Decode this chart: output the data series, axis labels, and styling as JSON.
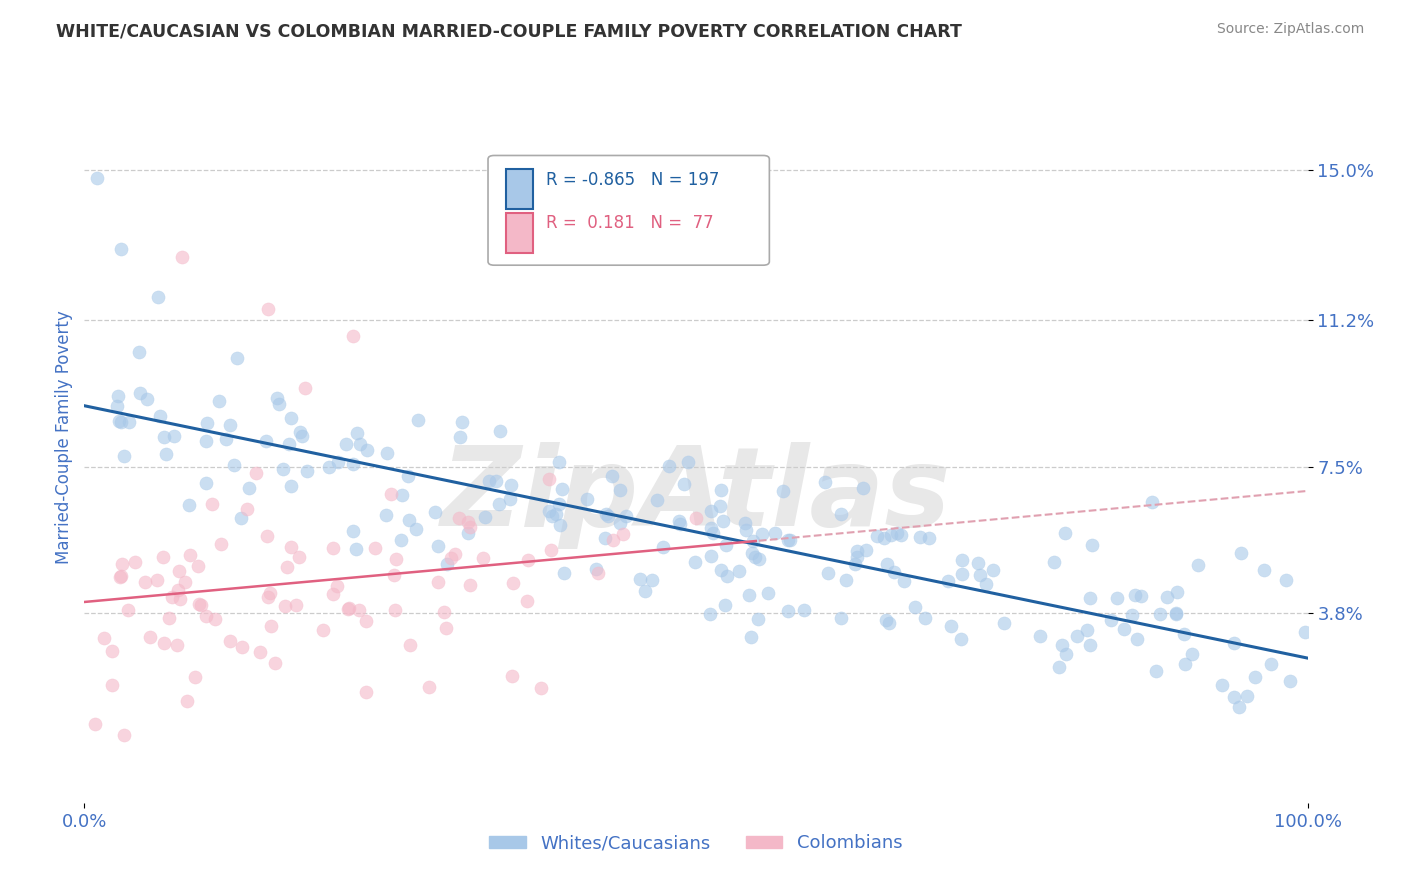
{
  "title": "WHITE/CAUCASIAN VS COLOMBIAN MARRIED-COUPLE FAMILY POVERTY CORRELATION CHART",
  "source": "Source: ZipAtlas.com",
  "ylabel": "Married-Couple Family Poverty",
  "blue_label": "Whites/Caucasians",
  "pink_label": "Colombians",
  "blue_R": -0.865,
  "blue_N": 197,
  "pink_R": 0.181,
  "pink_N": 77,
  "blue_color": "#a8c8e8",
  "pink_color": "#f4b8c8",
  "blue_line_color": "#2060a0",
  "pink_line_color": "#e06080",
  "pink_dash_color": "#e0a0b0",
  "ytick_labels": [
    "3.8%",
    "7.5%",
    "11.2%",
    "15.0%"
  ],
  "ytick_values": [
    0.038,
    0.075,
    0.112,
    0.15
  ],
  "xlim": [
    0.0,
    1.0
  ],
  "ylim": [
    -0.01,
    0.175
  ],
  "watermark": "ZipAtlas",
  "title_color": "#333333",
  "axis_label_color": "#4472c4",
  "tick_color": "#4472c4",
  "background_color": "#ffffff",
  "grid_color": "#cccccc",
  "legend_text_blue": "R = -0.865  N = 197",
  "legend_text_pink": "R =  0.181  N =  77"
}
